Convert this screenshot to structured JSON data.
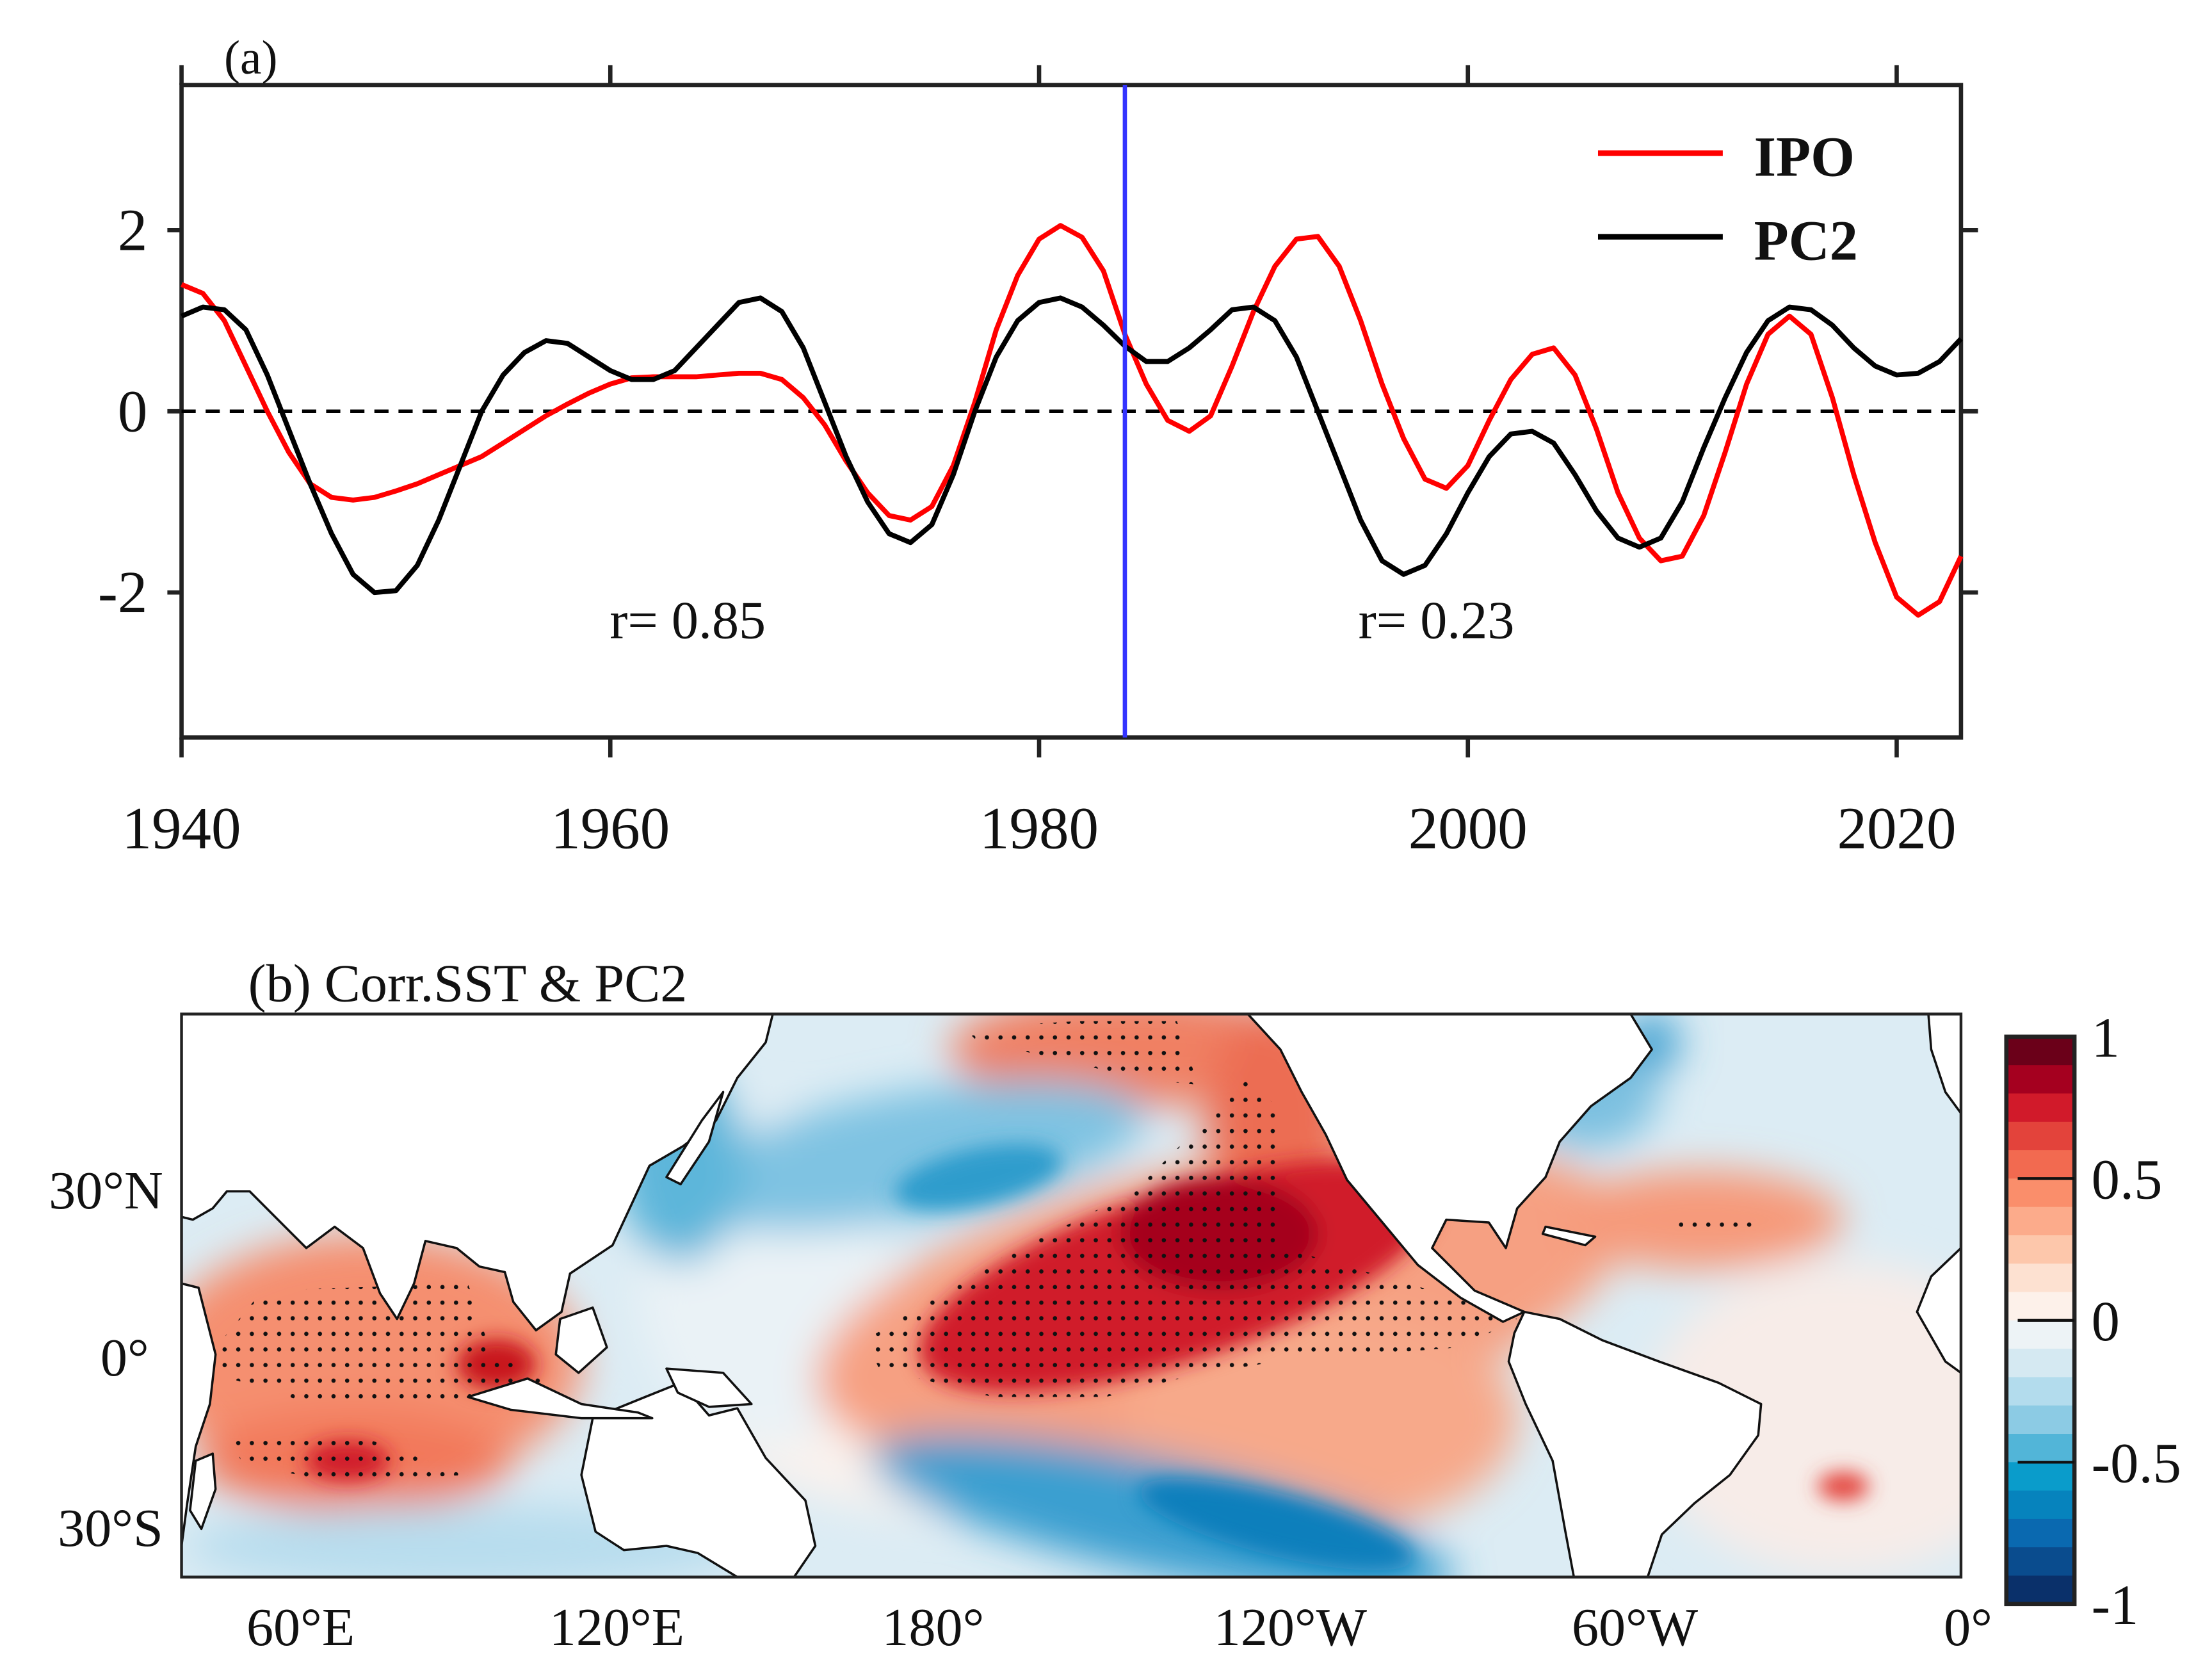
{
  "chart_data": [
    {
      "type": "line",
      "panel_label": "(a)",
      "xlim": [
        1940,
        2023
      ],
      "ylim": [
        -3.6,
        3.6
      ],
      "xticks": [
        1940,
        1960,
        1980,
        2000,
        2020
      ],
      "xtick_labels": [
        "1940",
        "1960",
        "1980",
        "2000",
        "2020"
      ],
      "yticks": [
        -2,
        0,
        2
      ],
      "ytick_labels": [
        "-2",
        "0",
        "2"
      ],
      "legend_position": "top-right",
      "split_year": 1984,
      "annotations": [
        "r= 0.85",
        "r= 0.23"
      ],
      "x": [
        1940,
        1941,
        1942,
        1943,
        1944,
        1945,
        1946,
        1947,
        1948,
        1949,
        1950,
        1951,
        1952,
        1953,
        1954,
        1955,
        1956,
        1957,
        1958,
        1959,
        1960,
        1961,
        1962,
        1963,
        1964,
        1965,
        1966,
        1967,
        1968,
        1969,
        1970,
        1971,
        1972,
        1973,
        1974,
        1975,
        1976,
        1977,
        1978,
        1979,
        1980,
        1981,
        1982,
        1983,
        1984,
        1985,
        1986,
        1987,
        1988,
        1989,
        1990,
        1991,
        1992,
        1993,
        1994,
        1995,
        1996,
        1997,
        1998,
        1999,
        2000,
        2001,
        2002,
        2003,
        2004,
        2005,
        2006,
        2007,
        2008,
        2009,
        2010,
        2011,
        2012,
        2013,
        2014,
        2015,
        2016,
        2017,
        2018,
        2019,
        2020,
        2021,
        2022,
        2023
      ],
      "series": [
        {
          "name": "IPO",
          "color": "#ff0000",
          "values": [
            1.4,
            1.3,
            1.0,
            0.5,
            0.0,
            -0.45,
            -0.8,
            -0.95,
            -0.98,
            -0.95,
            -0.88,
            -0.8,
            -0.7,
            -0.6,
            -0.5,
            -0.35,
            -0.2,
            -0.05,
            0.08,
            0.2,
            0.3,
            0.37,
            0.38,
            0.38,
            0.38,
            0.4,
            0.42,
            0.42,
            0.35,
            0.15,
            -0.15,
            -0.55,
            -0.9,
            -1.15,
            -1.2,
            -1.05,
            -0.6,
            0.1,
            0.9,
            1.5,
            1.9,
            2.05,
            1.92,
            1.55,
            0.85,
            0.3,
            -0.1,
            -0.22,
            -0.05,
            0.5,
            1.1,
            1.6,
            1.9,
            1.93,
            1.6,
            1.0,
            0.3,
            -0.3,
            -0.75,
            -0.85,
            -0.6,
            -0.1,
            0.35,
            0.63,
            0.7,
            0.4,
            -0.2,
            -0.9,
            -1.4,
            -1.65,
            -1.6,
            -1.15,
            -0.45,
            0.3,
            0.85,
            1.05,
            0.85,
            0.15,
            -0.7,
            -1.45,
            -2.05,
            -2.25,
            -2.1,
            -1.6
          ]
        },
        {
          "name": "PC2",
          "color": "#000000",
          "values": [
            1.05,
            1.15,
            1.12,
            0.9,
            0.4,
            -0.2,
            -0.8,
            -1.35,
            -1.8,
            -2.0,
            -1.98,
            -1.7,
            -1.2,
            -0.6,
            0.0,
            0.4,
            0.65,
            0.78,
            0.75,
            0.6,
            0.45,
            0.35,
            0.35,
            0.45,
            0.7,
            0.95,
            1.2,
            1.25,
            1.1,
            0.7,
            0.1,
            -0.5,
            -1.0,
            -1.35,
            -1.45,
            -1.25,
            -0.7,
            0.0,
            0.6,
            1.0,
            1.2,
            1.25,
            1.15,
            0.95,
            0.72,
            0.55,
            0.55,
            0.7,
            0.9,
            1.12,
            1.15,
            1.0,
            0.6,
            0.0,
            -0.6,
            -1.2,
            -1.65,
            -1.8,
            -1.7,
            -1.35,
            -0.9,
            -0.5,
            -0.25,
            -0.22,
            -0.35,
            -0.7,
            -1.1,
            -1.4,
            -1.5,
            -1.4,
            -1.0,
            -0.4,
            0.15,
            0.65,
            1.0,
            1.15,
            1.12,
            0.95,
            0.7,
            0.5,
            0.4,
            0.42,
            0.55,
            0.8
          ]
        }
      ],
      "zero_line": "dashed",
      "split_line_color": "#3333ff"
    },
    {
      "type": "heatmap",
      "title": "(b) Corr.SST & PC2",
      "xtick_labels": [
        "60°E",
        "120°E",
        "180°",
        "120°W",
        "60°W",
        "0°"
      ],
      "ytick_labels": [
        "30°N",
        "0°",
        "30°S"
      ],
      "colorbar": {
        "range": [
          -1,
          1
        ],
        "ticks": [
          1,
          0.5,
          0,
          -0.5,
          -1
        ],
        "tick_labels": [
          "1",
          "0.5",
          "0",
          "-0.5",
          "-1"
        ],
        "levels": [
          "#6b0019",
          "#a5001f",
          "#d11a2a",
          "#e3433b",
          "#f26a50",
          "#fa8e6b",
          "#fcab8b",
          "#fdc7ab",
          "#fde1d1",
          "#fdf1ea",
          "#edf3f6",
          "#d5e9f2",
          "#b3dced",
          "#8ccbe4",
          "#52b5d8",
          "#0a9ccb",
          "#0683bd",
          "#0a69b0",
          "#0a4c8e",
          "#0a306a"
        ]
      },
      "stippling": "significant correlation",
      "features": {
        "central_pacific": "strong positive correlation",
        "north_pacific": "negative correlation",
        "south_pacific": "negative correlation",
        "indian_ocean": "positive correlation"
      }
    }
  ]
}
